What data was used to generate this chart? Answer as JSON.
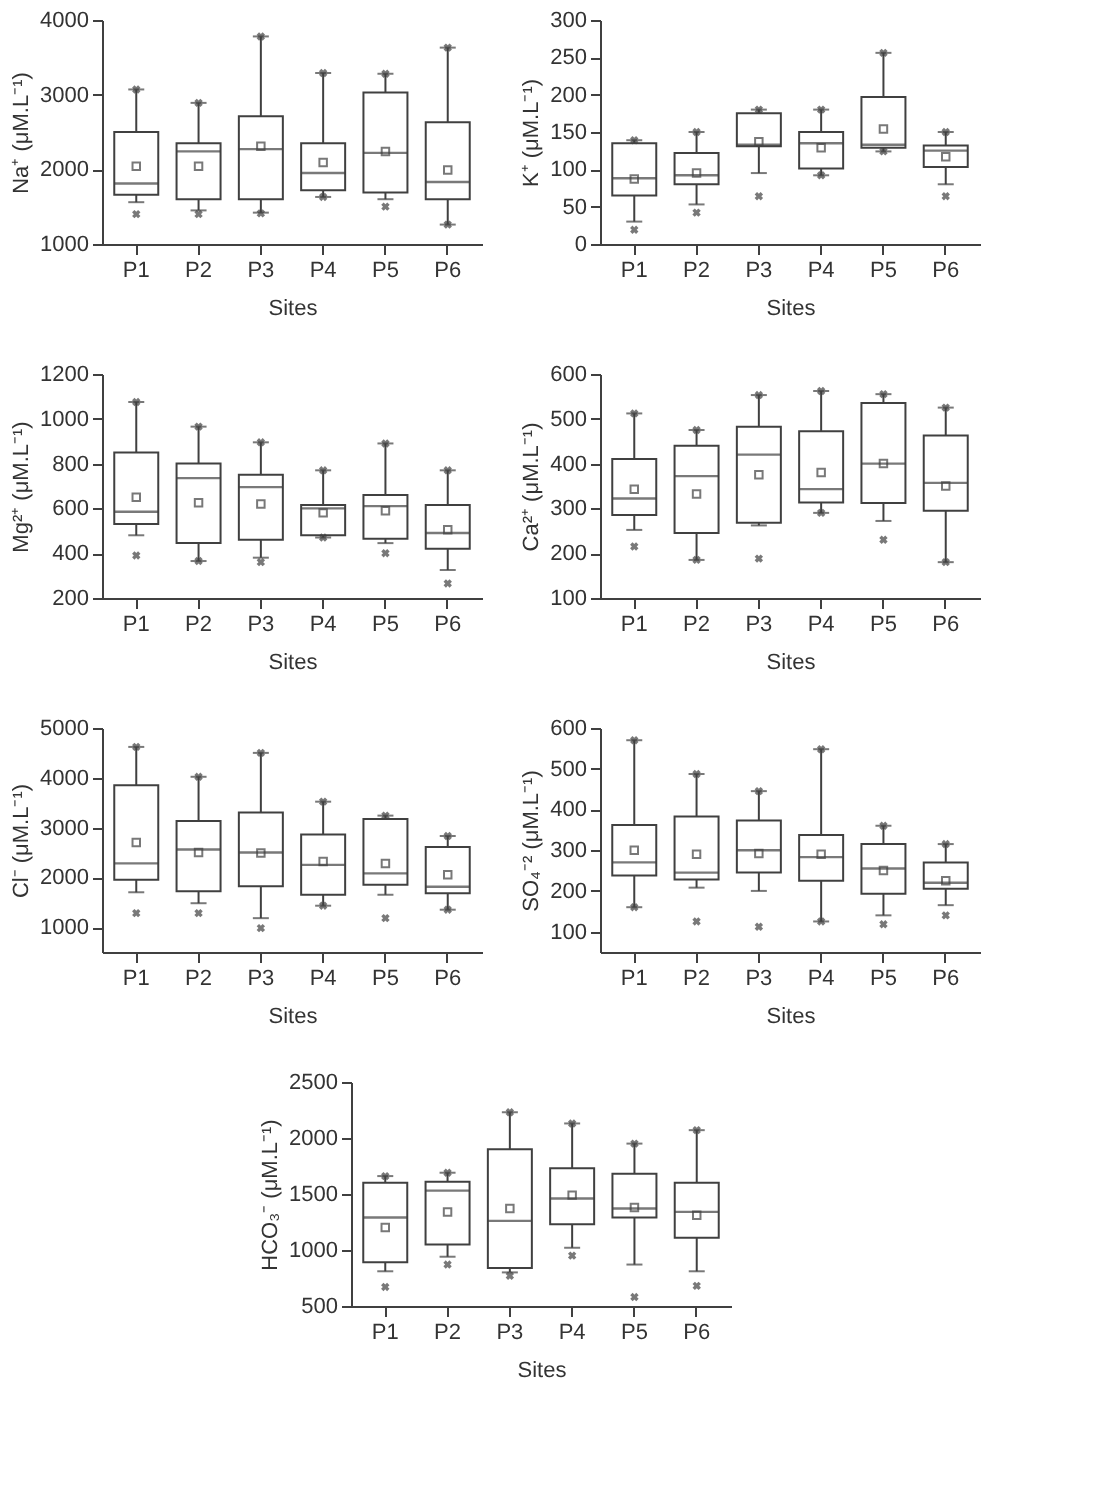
{
  "chart_data": [
    {
      "type": "box",
      "xlabel": "Sites",
      "ylabel": "Na⁺ (μM.L⁻¹)",
      "categories": [
        "P1",
        "P2",
        "P3",
        "P4",
        "P5",
        "P6"
      ],
      "ylim": [
        1000,
        4000
      ],
      "yticks": [
        1000,
        2000,
        3000,
        4000
      ],
      "boxes": [
        {
          "low": 1560,
          "q1": 1660,
          "median": 1810,
          "q3": 2500,
          "high": 3070,
          "mean": 2040,
          "outliers": [
            1400,
            3070
          ]
        },
        {
          "low": 1450,
          "q1": 1600,
          "median": 2240,
          "q3": 2350,
          "high": 2890,
          "mean": 2040,
          "outliers": [
            1400,
            2890
          ]
        },
        {
          "low": 1420,
          "q1": 1600,
          "median": 2270,
          "q3": 2710,
          "high": 3780,
          "mean": 2310,
          "outliers": [
            1410,
            3780
          ]
        },
        {
          "low": 1630,
          "q1": 1720,
          "median": 1950,
          "q3": 2350,
          "high": 3290,
          "mean": 2090,
          "outliers": [
            1630,
            3290
          ]
        },
        {
          "low": 1600,
          "q1": 1690,
          "median": 2220,
          "q3": 3030,
          "high": 3280,
          "mean": 2240,
          "outliers": [
            1500,
            3280
          ]
        },
        {
          "low": 1260,
          "q1": 1600,
          "median": 1830,
          "q3": 2630,
          "high": 3630,
          "mean": 1990,
          "outliers": [
            1260,
            3630
          ]
        }
      ]
    },
    {
      "type": "box",
      "xlabel": "Sites",
      "ylabel": "K⁺ (μM.L⁻¹)",
      "categories": [
        "P1",
        "P2",
        "P3",
        "P4",
        "P5",
        "P6"
      ],
      "ylim": [
        0,
        300
      ],
      "yticks": [
        0,
        50,
        100,
        150,
        200,
        250,
        300
      ],
      "boxes": [
        {
          "low": 30,
          "q1": 65,
          "median": 88,
          "q3": 135,
          "high": 139,
          "mean": 87,
          "outliers": [
            19,
            139
          ]
        },
        {
          "low": 53,
          "q1": 80,
          "median": 92,
          "q3": 122,
          "high": 150,
          "mean": 95,
          "outliers": [
            42,
            150
          ]
        },
        {
          "low": 95,
          "q1": 131,
          "median": 133,
          "q3": 175,
          "high": 180,
          "mean": 137,
          "outliers": [
            64,
            180
          ]
        },
        {
          "low": 92,
          "q1": 101,
          "median": 135,
          "q3": 150,
          "high": 180,
          "mean": 129,
          "outliers": [
            92,
            180
          ]
        },
        {
          "low": 124,
          "q1": 129,
          "median": 133,
          "q3": 197,
          "high": 256,
          "mean": 154,
          "outliers": [
            124,
            256
          ]
        },
        {
          "low": 80,
          "q1": 103,
          "median": 125,
          "q3": 132,
          "high": 150,
          "mean": 117,
          "outliers": [
            64,
            150
          ]
        }
      ]
    },
    {
      "type": "box",
      "xlabel": "Sites",
      "ylabel": "Mg²⁺ (μM.L⁻¹)",
      "categories": [
        "P1",
        "P2",
        "P3",
        "P4",
        "P5",
        "P6"
      ],
      "ylim": [
        200,
        1200
      ],
      "yticks": [
        200,
        400,
        600,
        800,
        1000,
        1200
      ],
      "boxes": [
        {
          "low": 480,
          "q1": 530,
          "median": 585,
          "q3": 850,
          "high": 1075,
          "mean": 650,
          "outliers": [
            390,
            1075
          ]
        },
        {
          "low": 365,
          "q1": 445,
          "median": 735,
          "q3": 800,
          "high": 965,
          "mean": 625,
          "outliers": [
            365,
            965
          ]
        },
        {
          "low": 380,
          "q1": 460,
          "median": 695,
          "q3": 750,
          "high": 895,
          "mean": 620,
          "outliers": [
            360,
            895
          ]
        },
        {
          "low": 470,
          "q1": 480,
          "median": 600,
          "q3": 615,
          "high": 770,
          "mean": 580,
          "outliers": [
            470,
            770
          ]
        },
        {
          "low": 445,
          "q1": 465,
          "median": 610,
          "q3": 660,
          "high": 890,
          "mean": 590,
          "outliers": [
            400,
            890
          ]
        },
        {
          "low": 325,
          "q1": 420,
          "median": 490,
          "q3": 615,
          "high": 770,
          "mean": 505,
          "outliers": [
            265,
            770
          ]
        }
      ]
    },
    {
      "type": "box",
      "xlabel": "Sites",
      "ylabel": "Ca²⁺ (μM.L⁻¹)",
      "categories": [
        "P1",
        "P2",
        "P3",
        "P4",
        "P5",
        "P6"
      ],
      "ylim": [
        100,
        600
      ],
      "yticks": [
        100,
        200,
        300,
        400,
        500,
        600
      ],
      "boxes": [
        {
          "low": 252,
          "q1": 285,
          "median": 322,
          "q3": 410,
          "high": 512,
          "mean": 343,
          "outliers": [
            215,
            512
          ]
        },
        {
          "low": 185,
          "q1": 245,
          "median": 372,
          "q3": 440,
          "high": 475,
          "mean": 332,
          "outliers": [
            185,
            475
          ]
        },
        {
          "low": 262,
          "q1": 268,
          "median": 420,
          "q3": 482,
          "high": 553,
          "mean": 375,
          "outliers": [
            188,
            553
          ]
        },
        {
          "low": 290,
          "q1": 313,
          "median": 343,
          "q3": 472,
          "high": 562,
          "mean": 380,
          "outliers": [
            290,
            562
          ]
        },
        {
          "low": 272,
          "q1": 312,
          "median": 400,
          "q3": 535,
          "high": 555,
          "mean": 400,
          "outliers": [
            230,
            555
          ]
        },
        {
          "low": 180,
          "q1": 295,
          "median": 357,
          "q3": 463,
          "high": 525,
          "mean": 350,
          "outliers": [
            180,
            525
          ]
        }
      ]
    },
    {
      "type": "box",
      "xlabel": "Sites",
      "ylabel": "Cl⁻ (μM.L⁻¹)",
      "categories": [
        "P1",
        "P2",
        "P3",
        "P4",
        "P5",
        "P6"
      ],
      "ylim": [
        500,
        5000
      ],
      "yticks": [
        1000,
        2000,
        3000,
        4000,
        5000
      ],
      "boxes": [
        {
          "low": 1700,
          "q1": 1950,
          "median": 2280,
          "q3": 3850,
          "high": 4620,
          "mean": 2700,
          "outliers": [
            1280,
            4620
          ]
        },
        {
          "low": 1480,
          "q1": 1720,
          "median": 2560,
          "q3": 3130,
          "high": 4020,
          "mean": 2500,
          "outliers": [
            1280,
            4020
          ]
        },
        {
          "low": 1180,
          "q1": 1820,
          "median": 2500,
          "q3": 3300,
          "high": 4500,
          "mean": 2490,
          "outliers": [
            980,
            4500
          ]
        },
        {
          "low": 1430,
          "q1": 1650,
          "median": 2250,
          "q3": 2860,
          "high": 3520,
          "mean": 2320,
          "outliers": [
            1430,
            3520
          ]
        },
        {
          "low": 1650,
          "q1": 1850,
          "median": 2080,
          "q3": 3170,
          "high": 3240,
          "mean": 2280,
          "outliers": [
            1180,
            3240
          ]
        },
        {
          "low": 1350,
          "q1": 1680,
          "median": 1810,
          "q3": 2610,
          "high": 2830,
          "mean": 2050,
          "outliers": [
            1350,
            2830
          ]
        }
      ]
    },
    {
      "type": "box",
      "xlabel": "Sites",
      "ylabel": "SO₄⁻² (μM.L⁻¹)",
      "categories": [
        "P1",
        "P2",
        "P3",
        "P4",
        "P5",
        "P6"
      ],
      "ylim": [
        50,
        600
      ],
      "yticks": [
        100,
        200,
        300,
        400,
        500,
        600
      ],
      "boxes": [
        {
          "low": 160,
          "q1": 238,
          "median": 270,
          "q3": 362,
          "high": 570,
          "mean": 300,
          "outliers": [
            160,
            570
          ]
        },
        {
          "low": 208,
          "q1": 228,
          "median": 245,
          "q3": 383,
          "high": 487,
          "mean": 290,
          "outliers": [
            125,
            487
          ]
        },
        {
          "low": 200,
          "q1": 245,
          "median": 300,
          "q3": 373,
          "high": 445,
          "mean": 292,
          "outliers": [
            112,
            445
          ]
        },
        {
          "low": 125,
          "q1": 225,
          "median": 283,
          "q3": 337,
          "high": 548,
          "mean": 290,
          "outliers": [
            125,
            548
          ]
        },
        {
          "low": 140,
          "q1": 193,
          "median": 255,
          "q3": 315,
          "high": 360,
          "mean": 250,
          "outliers": [
            118,
            360
          ]
        },
        {
          "low": 165,
          "q1": 205,
          "median": 220,
          "q3": 270,
          "high": 315,
          "mean": 225,
          "outliers": [
            140,
            315
          ]
        }
      ]
    },
    {
      "type": "box",
      "xlabel": "Sites",
      "ylabel": "HCO₃⁻ (μM.L⁻¹)",
      "categories": [
        "P1",
        "P2",
        "P3",
        "P4",
        "P5",
        "P6"
      ],
      "ylim": [
        500,
        2500
      ],
      "yticks": [
        500,
        1000,
        1500,
        2000,
        2500
      ],
      "boxes": [
        {
          "low": 810,
          "q1": 890,
          "median": 1290,
          "q3": 1600,
          "high": 1660,
          "mean": 1200,
          "outliers": [
            670,
            1660
          ]
        },
        {
          "low": 940,
          "q1": 1050,
          "median": 1530,
          "q3": 1610,
          "high": 1690,
          "mean": 1340,
          "outliers": [
            870,
            1690
          ]
        },
        {
          "low": 800,
          "q1": 840,
          "median": 1260,
          "q3": 1900,
          "high": 2230,
          "mean": 1370,
          "outliers": [
            770,
            2230
          ]
        },
        {
          "low": 1020,
          "q1": 1230,
          "median": 1460,
          "q3": 1730,
          "high": 2130,
          "mean": 1490,
          "outliers": [
            950,
            2130
          ]
        },
        {
          "low": 870,
          "q1": 1290,
          "median": 1370,
          "q3": 1680,
          "high": 1950,
          "mean": 1380,
          "outliers": [
            580,
            1950
          ]
        },
        {
          "low": 810,
          "q1": 1110,
          "median": 1340,
          "q3": 1600,
          "high": 2070,
          "mean": 1310,
          "outliers": [
            680,
            2070
          ]
        }
      ]
    }
  ]
}
